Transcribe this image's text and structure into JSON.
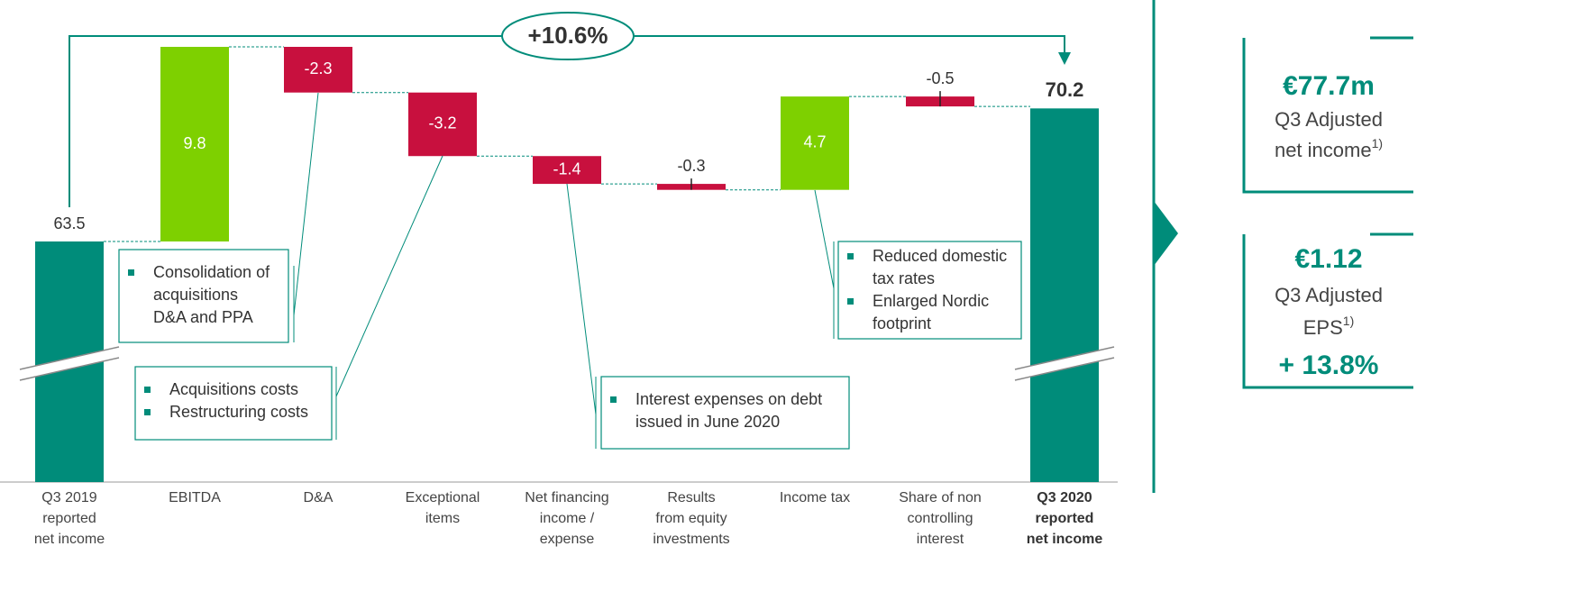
{
  "chart_data": {
    "type": "waterfall",
    "categories": [
      [
        "Q3 2019",
        "reported",
        "net income"
      ],
      [
        "EBITDA"
      ],
      [
        "D&A"
      ],
      [
        "Exceptional",
        "items"
      ],
      [
        "Net financing",
        "income /",
        "expense"
      ],
      [
        "Results",
        "from equity",
        "investments"
      ],
      [
        "Income tax"
      ],
      [
        "Share of non",
        "controlling",
        "interest"
      ],
      [
        "Q3 2020",
        "reported",
        "net income"
      ]
    ],
    "values": [
      63.5,
      9.8,
      -2.3,
      -3.2,
      -1.4,
      -0.3,
      4.7,
      -0.5,
      70.2
    ],
    "kinds": [
      "total",
      "delta",
      "delta",
      "delta",
      "delta",
      "delta",
      "delta",
      "delta",
      "total"
    ],
    "colors": {
      "total": "#008c7a",
      "increase": "#7ed000",
      "decrease": "#c8103e"
    },
    "growth_annotation": "+10.6%",
    "callouts": [
      {
        "bullets": [
          [
            "Consolidation of",
            "acquisitions",
            "D&A and PPA"
          ]
        ]
      },
      {
        "bullets": [
          [
            "Acquisitions costs"
          ],
          [
            "Restructuring costs"
          ]
        ]
      },
      {
        "bullets": [
          [
            "Interest expenses on debt",
            "issued in June 2020"
          ]
        ]
      },
      {
        "bullets": [
          [
            "Reduced domestic",
            "tax rates"
          ],
          [
            "Enlarged Nordic",
            "footprint"
          ]
        ]
      }
    ]
  },
  "side_panel": {
    "kpis": [
      {
        "value": "€77.7m",
        "label": [
          "Q3 Adjusted",
          "net income"
        ],
        "footnote": "1)"
      },
      {
        "value": "€1.12",
        "label": [
          "Q3 Adjusted",
          "EPS"
        ],
        "footnote": "1)",
        "change": "+ 13.8%"
      }
    ]
  }
}
